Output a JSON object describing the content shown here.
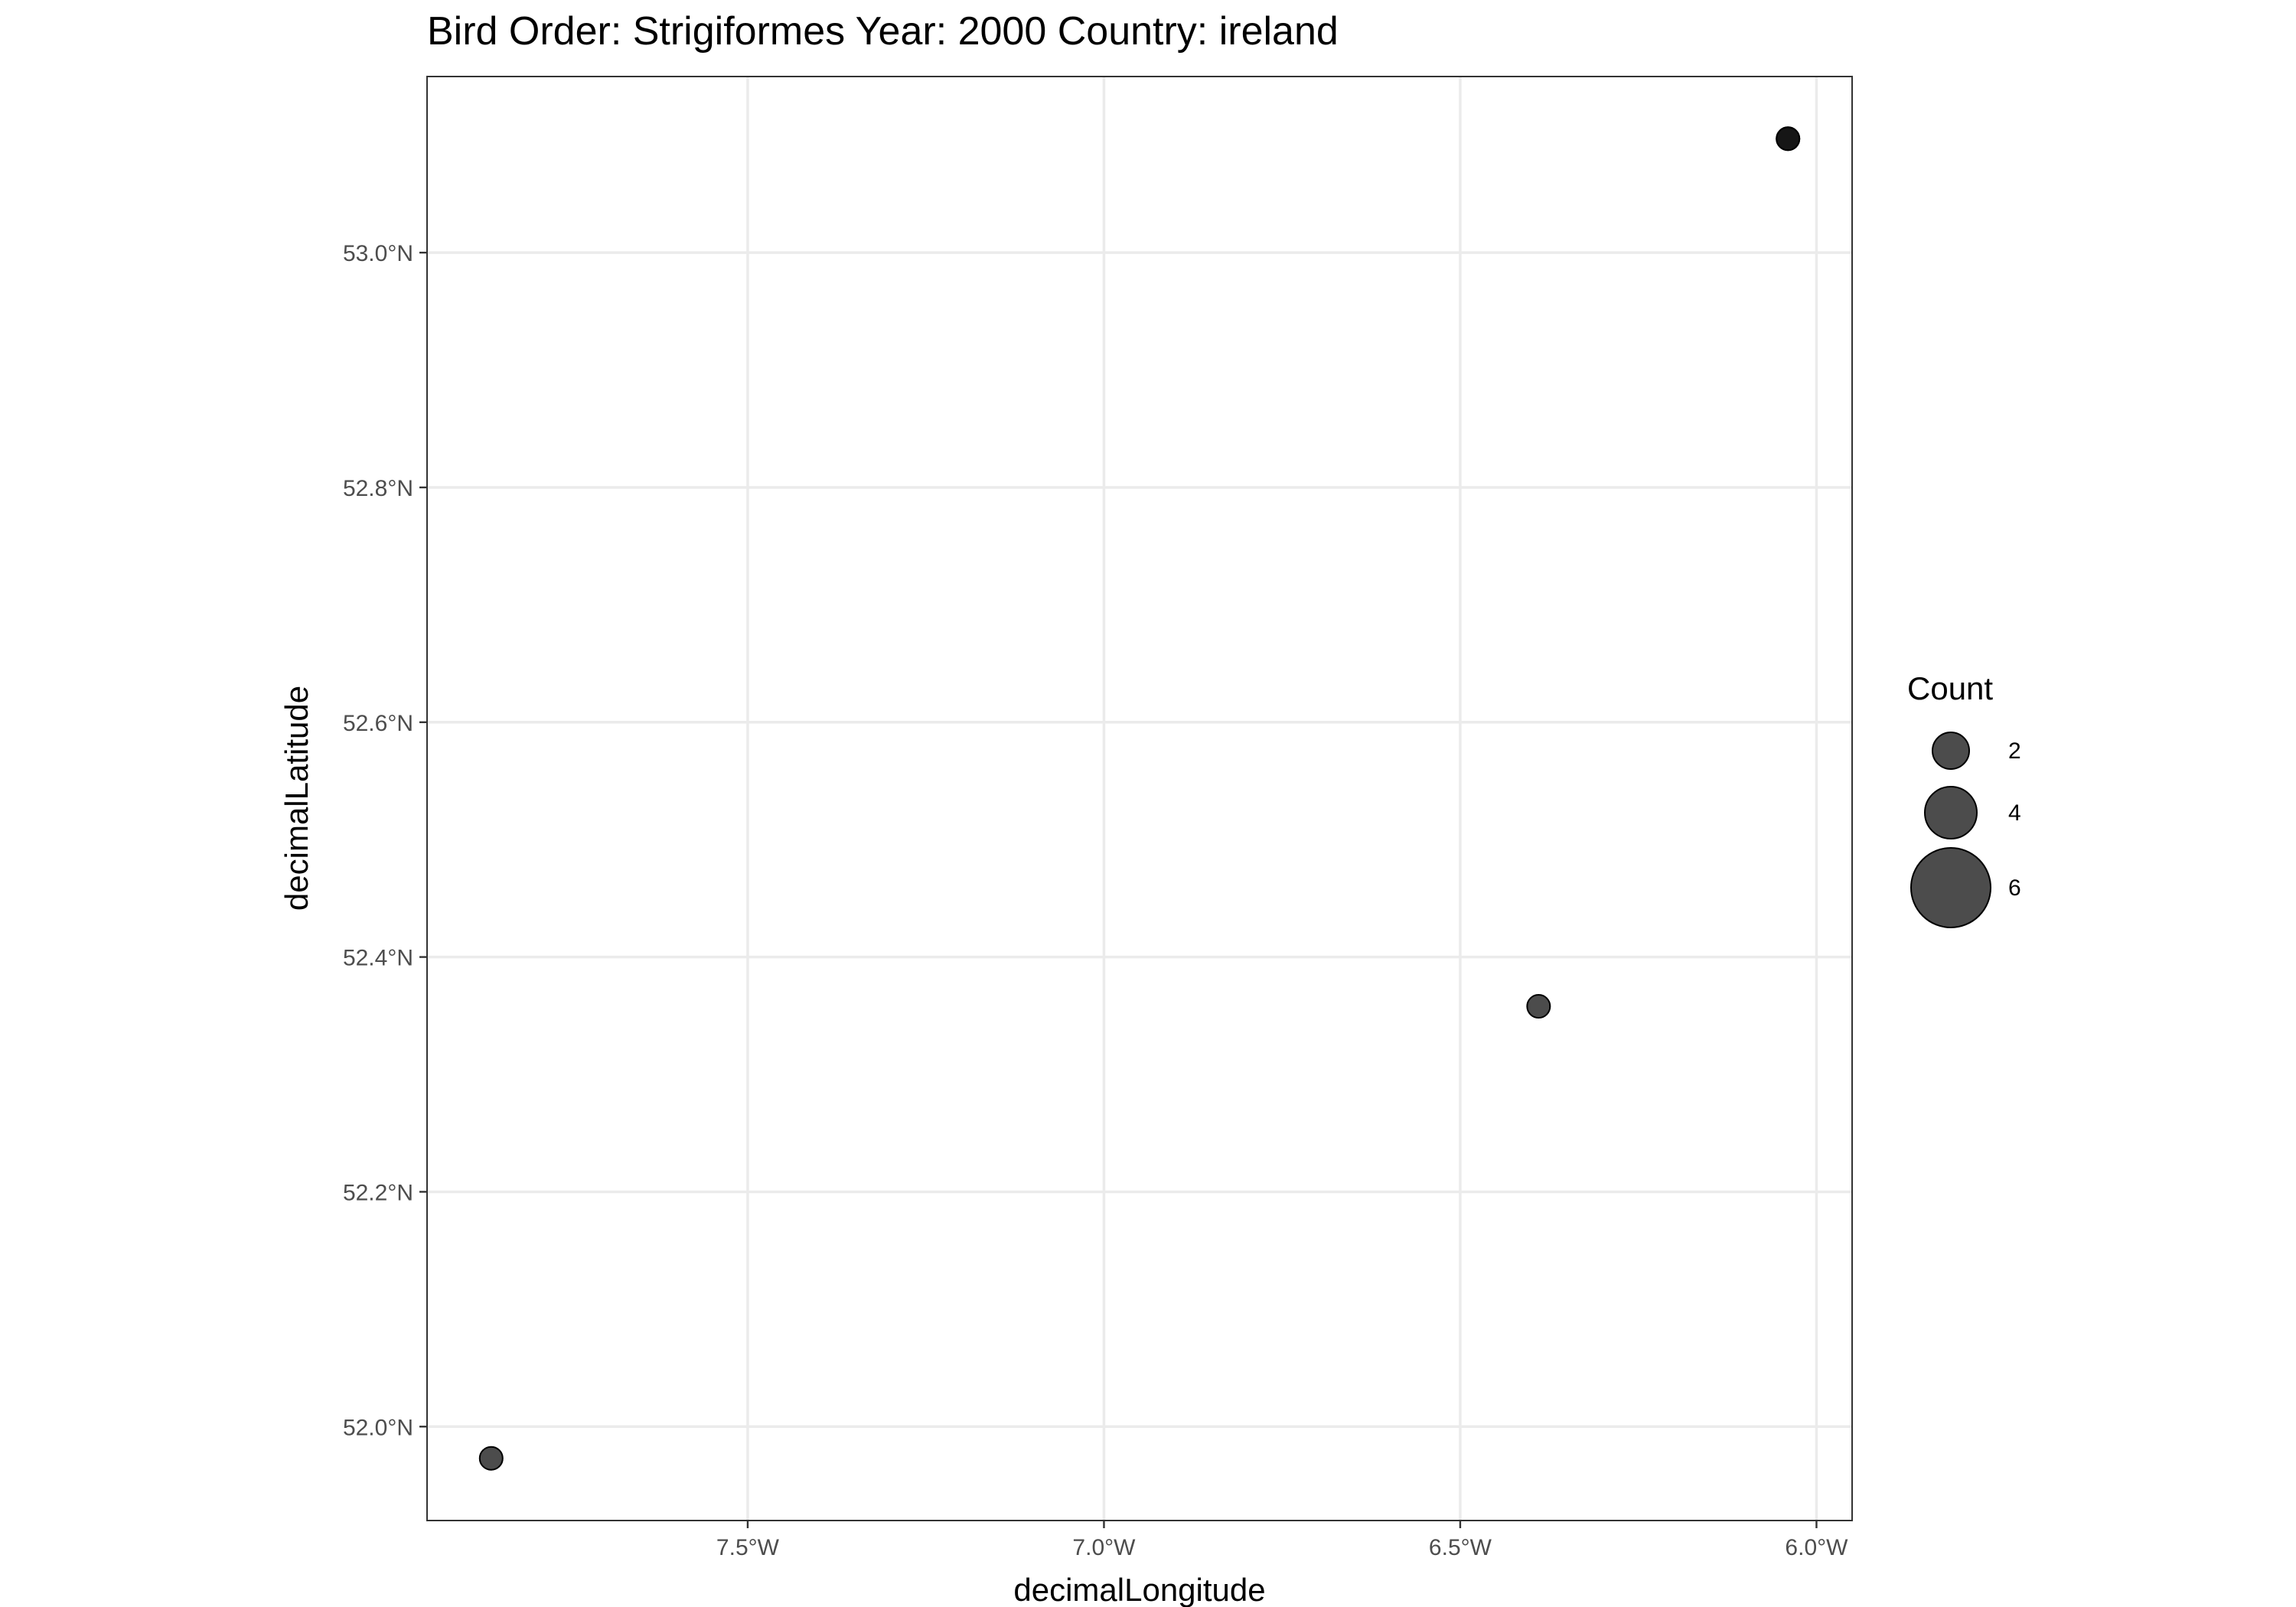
{
  "chart_data": {
    "type": "scatter",
    "title": "Bird Order: Strigiformes Year: 2000 Country: ireland",
    "xlabel": "decimalLongitude",
    "ylabel": "decimalLatitude",
    "xlim": [
      -7.95,
      -5.95
    ],
    "ylim": [
      51.92,
      53.15
    ],
    "x_ticks": [
      -7.5,
      -7.0,
      -6.5,
      -6.0
    ],
    "x_tick_labels": [
      "7.5°W",
      "7.0°W",
      "6.5°W",
      "6.0°W"
    ],
    "y_ticks": [
      52.0,
      52.2,
      52.4,
      52.6,
      52.8,
      53.0
    ],
    "y_tick_labels": [
      "52.0°N",
      "52.2°N",
      "52.4°N",
      "52.6°N",
      "52.8°N",
      "53.0°N"
    ],
    "grid": true,
    "points": [
      {
        "x": -7.86,
        "y": 51.973,
        "count": 1
      },
      {
        "x": -6.39,
        "y": 52.358,
        "count": 1
      },
      {
        "x": -6.04,
        "y": 53.097,
        "count": 1
      },
      {
        "x": -6.04,
        "y": 53.097,
        "count": 1
      }
    ],
    "point_color": "#000000",
    "point_opacity": 0.7,
    "legend": {
      "title": "Count",
      "position": "right",
      "entries": [
        {
          "label": "2",
          "value": 2
        },
        {
          "label": "4",
          "value": 4
        },
        {
          "label": "6",
          "value": 6
        }
      ]
    }
  }
}
